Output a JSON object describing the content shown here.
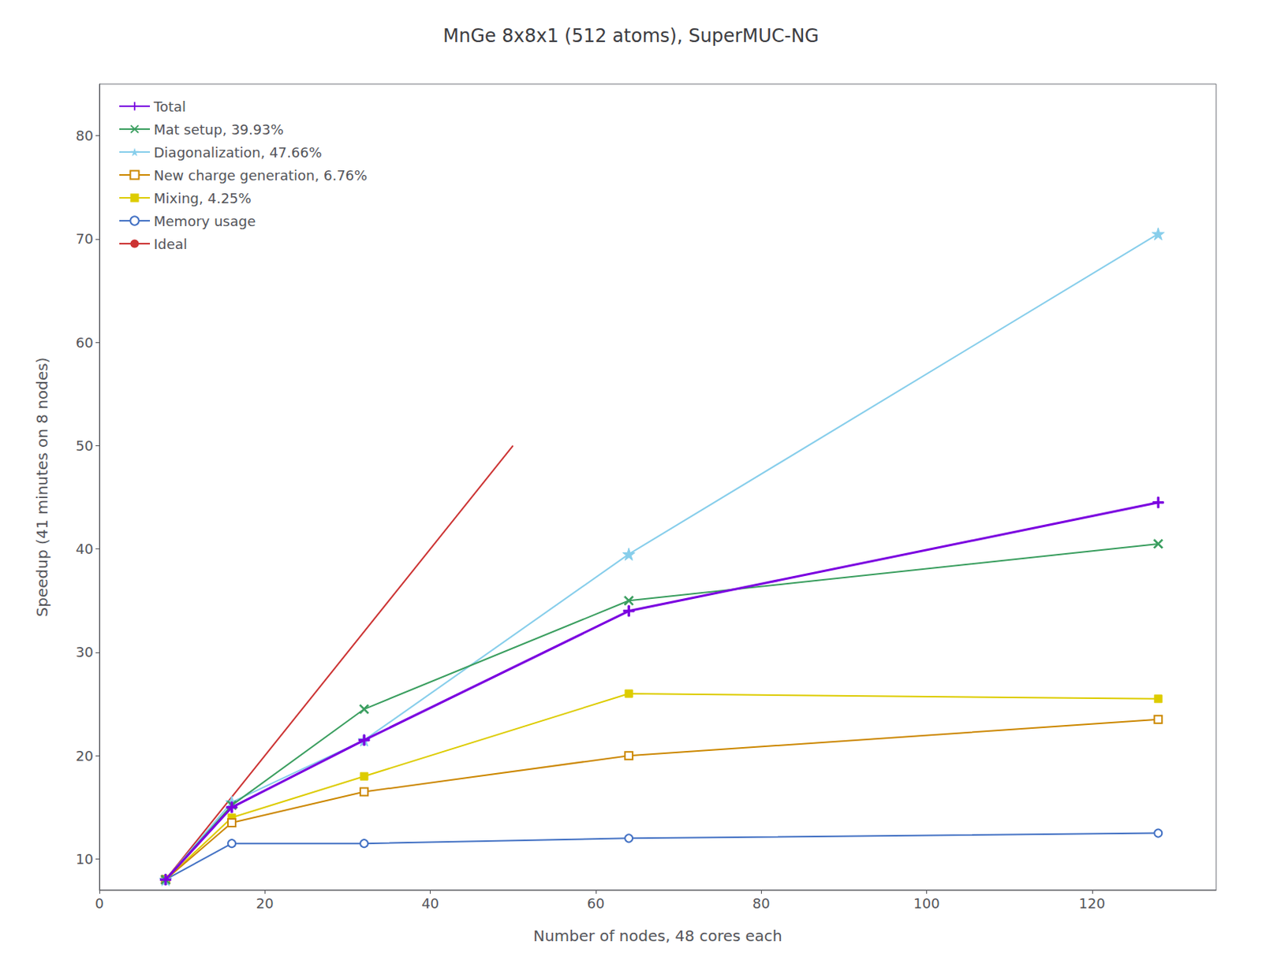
{
  "chart_data": {
    "type": "line",
    "title": "MnGe 8x8x1 (512 atoms), SuperMUC-NG",
    "xlabel": "Number of nodes, 48 cores each",
    "ylabel": "Speedup (41 minutes on 8 nodes)",
    "x": [
      8,
      16,
      32,
      64,
      128
    ],
    "series": [
      {
        "name": "Total",
        "color": "#7b00e0",
        "marker": "plus",
        "values": [
          8.0,
          15.0,
          21.5,
          34.0,
          44.5
        ]
      },
      {
        "name": "Mat setup, 39.93%",
        "color": "#3a9e5f",
        "marker": "x",
        "values": [
          8.0,
          15.2,
          24.5,
          35.0,
          40.5
        ]
      },
      {
        "name": "Diagonalization, 47.66%",
        "color": "#87ceeb",
        "marker": "star",
        "values": [
          8.0,
          15.5,
          21.5,
          39.5,
          70.5
        ]
      },
      {
        "name": "New charge generation, 6.76%",
        "color": "#cc8800",
        "marker": "open_square",
        "values": [
          8.0,
          13.5,
          16.5,
          20.0,
          23.5
        ]
      },
      {
        "name": "Mixing, 4.25%",
        "color": "#ddcc00",
        "marker": "square",
        "values": [
          8.0,
          14.0,
          18.0,
          26.0,
          25.5
        ]
      },
      {
        "name": "Memory usage",
        "color": "#4472c4",
        "marker": "open_circle",
        "values": [
          8.0,
          11.5,
          11.5,
          12.0,
          12.5
        ]
      },
      {
        "name": "Ideal",
        "color": "#cc3333",
        "marker": "none",
        "x": [
          8,
          50
        ],
        "values": [
          8,
          50
        ]
      }
    ],
    "xlim": [
      0,
      135
    ],
    "ylim": [
      7,
      85
    ],
    "xticks": [
      0,
      20,
      40,
      60,
      80,
      100,
      120
    ],
    "yticks": [
      10,
      20,
      30,
      40,
      50,
      60,
      70,
      80
    ],
    "grid": false,
    "legend": "upper left"
  }
}
